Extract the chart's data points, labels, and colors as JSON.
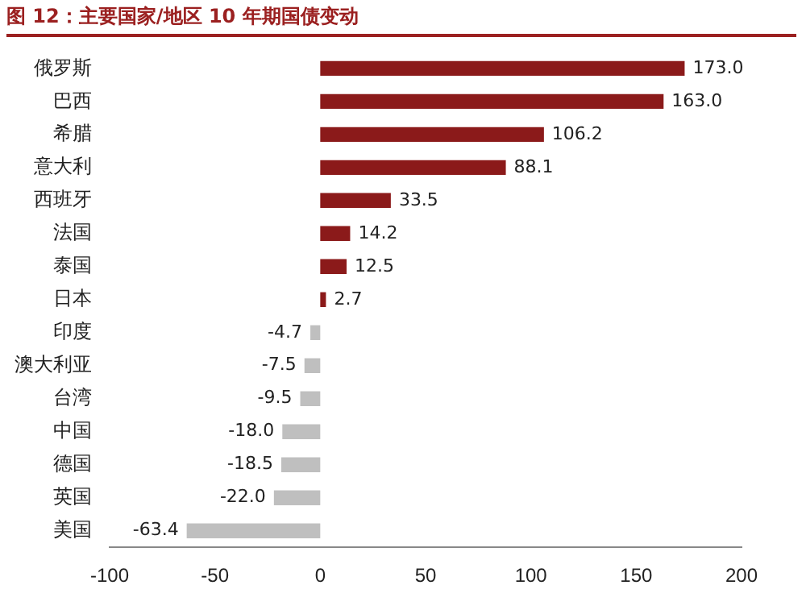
{
  "chart_data": {
    "type": "bar",
    "orientation": "horizontal",
    "title": "图 12：主要国家/地区 10 年期国债变动",
    "categories": [
      "俄罗斯",
      "巴西",
      "希腊",
      "意大利",
      "西班牙",
      "法国",
      "泰国",
      "日本",
      "印度",
      "澳大利亚",
      "台湾",
      "中国",
      "德国",
      "英国",
      "美国"
    ],
    "values": [
      173.0,
      163.0,
      106.2,
      88.1,
      33.5,
      14.2,
      12.5,
      2.7,
      -4.7,
      -7.5,
      -9.5,
      -18.0,
      -18.5,
      -22.0,
      -63.4
    ],
    "value_labels": [
      "173.0",
      "163.0",
      "106.2",
      "88.1",
      "33.5",
      "14.2",
      "12.5",
      "2.7",
      "-4.7",
      "-7.5",
      "-9.5",
      "-18.0",
      "-18.5",
      "-22.0",
      "-63.4"
    ],
    "colors": [
      "#8b1a1a",
      "#8b1a1a",
      "#8b1a1a",
      "#8b1a1a",
      "#8b1a1a",
      "#8b1a1a",
      "#8b1a1a",
      "#8b1a1a",
      "#bfbfbf",
      "#bfbfbf",
      "#bfbfbf",
      "#bfbfbf",
      "#bfbfbf",
      "#bfbfbf",
      "#bfbfbf"
    ],
    "xlim": [
      -100,
      200
    ],
    "xticks": [
      -100,
      -50,
      0,
      50,
      100,
      150,
      200
    ],
    "grid": false,
    "legend": false
  }
}
